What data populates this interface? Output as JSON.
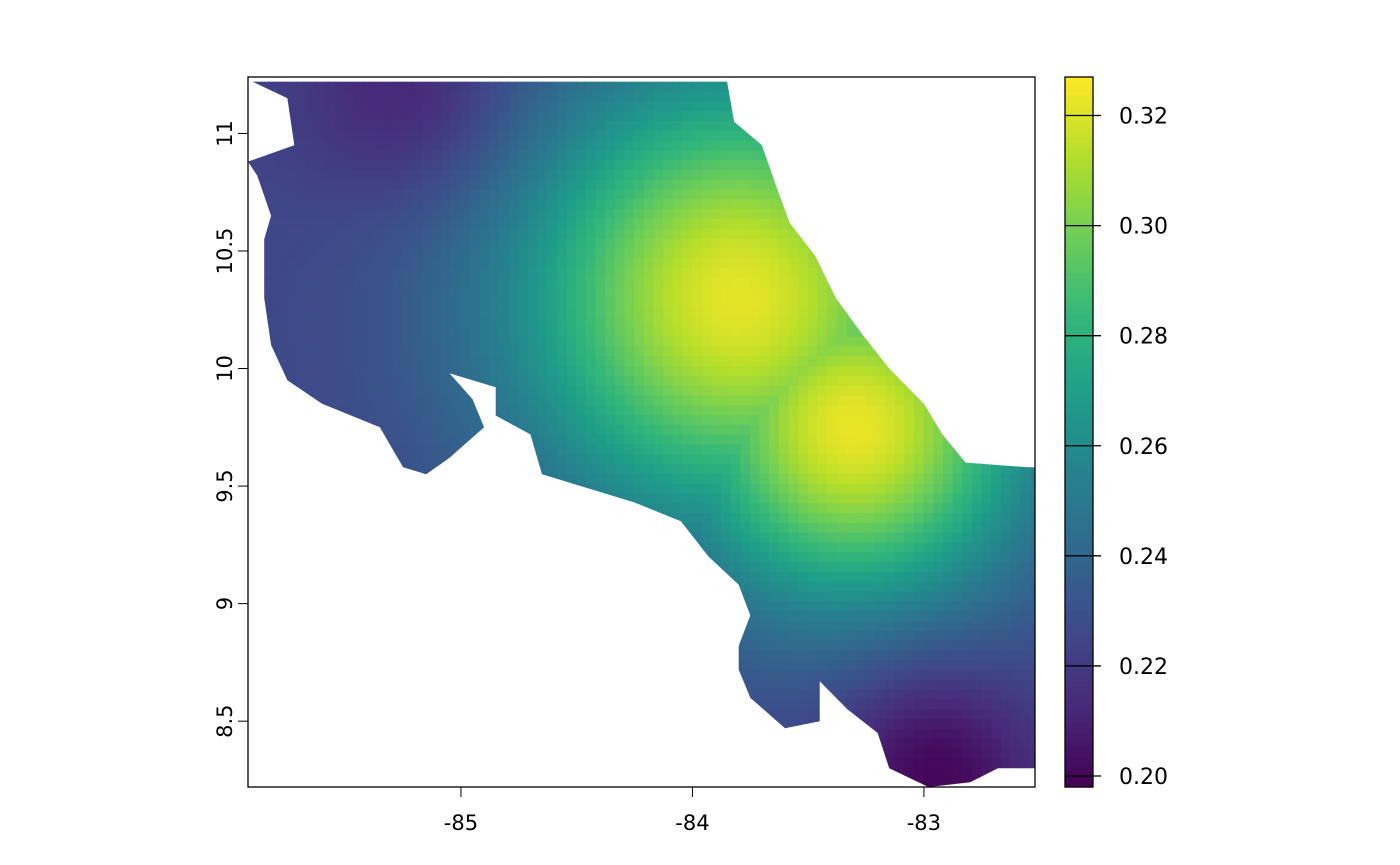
{
  "map": {
    "x_range": [
      -85.92,
      -82.52
    ],
    "y_range": [
      8.22,
      11.24
    ],
    "cell_size": 0.0417,
    "x_ticks": [
      {
        "value": -85,
        "label": "-85"
      },
      {
        "value": -84,
        "label": "-84"
      },
      {
        "value": -83,
        "label": "-83"
      }
    ],
    "y_ticks": [
      {
        "value": 8.5,
        "label": "8.5"
      },
      {
        "value": 9,
        "label": "9"
      },
      {
        "value": 9.5,
        "label": "9.5"
      },
      {
        "value": 10,
        "label": "10"
      },
      {
        "value": 10.5,
        "label": "10.5"
      },
      {
        "value": 11,
        "label": "11"
      }
    ],
    "value_field": {
      "min": 0.198,
      "max": 0.327,
      "base": 0.225,
      "peaks": [
        {
          "lon": -83.8,
          "lat": 10.3,
          "value": 0.322,
          "radius": 0.95
        },
        {
          "lon": -83.3,
          "lat": 9.75,
          "value": 0.323,
          "radius": 0.75
        }
      ],
      "low_spots": [
        {
          "lon": -85.3,
          "lat": 11.2,
          "value": 0.213,
          "radius": 0.45
        },
        {
          "lon": -82.95,
          "lat": 8.25,
          "value": 0.2,
          "radius": 0.45
        }
      ]
    },
    "land_polygon": [
      [
        -85.9,
        11.22
      ],
      [
        -83.85,
        11.22
      ],
      [
        -83.82,
        11.05
      ],
      [
        -83.7,
        10.95
      ],
      [
        -83.64,
        10.78
      ],
      [
        -83.58,
        10.62
      ],
      [
        -83.47,
        10.48
      ],
      [
        -83.38,
        10.3
      ],
      [
        -83.27,
        10.15
      ],
      [
        -83.15,
        10.0
      ],
      [
        -83.0,
        9.85
      ],
      [
        -82.92,
        9.72
      ],
      [
        -82.82,
        9.6
      ],
      [
        -82.55,
        9.58
      ],
      [
        -82.52,
        9.58
      ],
      [
        -82.52,
        8.3
      ],
      [
        -82.68,
        8.3
      ],
      [
        -82.8,
        8.24
      ],
      [
        -82.98,
        8.22
      ],
      [
        -83.15,
        8.3
      ],
      [
        -83.2,
        8.45
      ],
      [
        -83.33,
        8.55
      ],
      [
        -83.45,
        8.67
      ],
      [
        -83.45,
        8.5
      ],
      [
        -83.6,
        8.47
      ],
      [
        -83.75,
        8.6
      ],
      [
        -83.8,
        8.72
      ],
      [
        -83.8,
        8.82
      ],
      [
        -83.75,
        8.95
      ],
      [
        -83.8,
        9.08
      ],
      [
        -83.93,
        9.2
      ],
      [
        -84.05,
        9.35
      ],
      [
        -84.25,
        9.43
      ],
      [
        -84.65,
        9.55
      ],
      [
        -84.7,
        9.72
      ],
      [
        -84.85,
        9.8
      ],
      [
        -84.85,
        9.92
      ],
      [
        -85.05,
        9.98
      ],
      [
        -84.95,
        9.87
      ],
      [
        -84.9,
        9.75
      ],
      [
        -85.05,
        9.62
      ],
      [
        -85.15,
        9.55
      ],
      [
        -85.25,
        9.58
      ],
      [
        -85.35,
        9.75
      ],
      [
        -85.6,
        9.85
      ],
      [
        -85.75,
        9.95
      ],
      [
        -85.82,
        10.1
      ],
      [
        -85.85,
        10.3
      ],
      [
        -85.85,
        10.55
      ],
      [
        -85.82,
        10.65
      ],
      [
        -85.88,
        10.82
      ],
      [
        -85.92,
        10.88
      ],
      [
        -85.72,
        10.95
      ],
      [
        -85.75,
        11.15
      ],
      [
        -85.9,
        11.22
      ]
    ],
    "land_colour": "#2a8a8d",
    "border_colour": "#000000"
  },
  "legend": {
    "min": 0.198,
    "max": 0.327,
    "ticks": [
      {
        "value": 0.2,
        "label": "0.20"
      },
      {
        "value": 0.22,
        "label": "0.22"
      },
      {
        "value": 0.24,
        "label": "0.24"
      },
      {
        "value": 0.26,
        "label": "0.26"
      },
      {
        "value": 0.28,
        "label": "0.28"
      },
      {
        "value": 0.3,
        "label": "0.30"
      },
      {
        "value": 0.32,
        "label": "0.32"
      }
    ],
    "palette": "viridis",
    "stops": [
      "#440154",
      "#482878",
      "#3e4a89",
      "#31688e",
      "#26828e",
      "#1f9e89",
      "#35b779",
      "#6ece58",
      "#b5de2b",
      "#fde725"
    ]
  }
}
